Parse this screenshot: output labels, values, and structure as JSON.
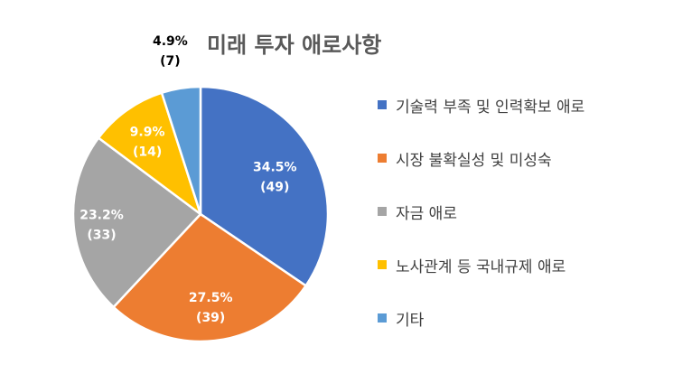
{
  "chart_data": {
    "type": "pie",
    "title": "미래 투자 애로사항",
    "categories": [
      "기술력 부족 및 인력확보 애로",
      "시장 불확실성 및 미성숙",
      "자금 애로",
      "노사관계 등 국내규제 애로",
      "기타"
    ],
    "values": [
      49,
      39,
      33,
      14,
      7
    ],
    "percent_labels": [
      "34.5%",
      "27.5%",
      "23.2%",
      "9.9%",
      "4.9%"
    ],
    "count_labels": [
      "(49)",
      "(39)",
      "(33)",
      "(14)",
      "(7)"
    ],
    "colors": [
      "#4472C4",
      "#ED7D31",
      "#A5A5A5",
      "#FFC000",
      "#5B9BD5"
    ],
    "start_angle": "12 o'clock",
    "direction": "clockwise",
    "legend_position": "right"
  }
}
